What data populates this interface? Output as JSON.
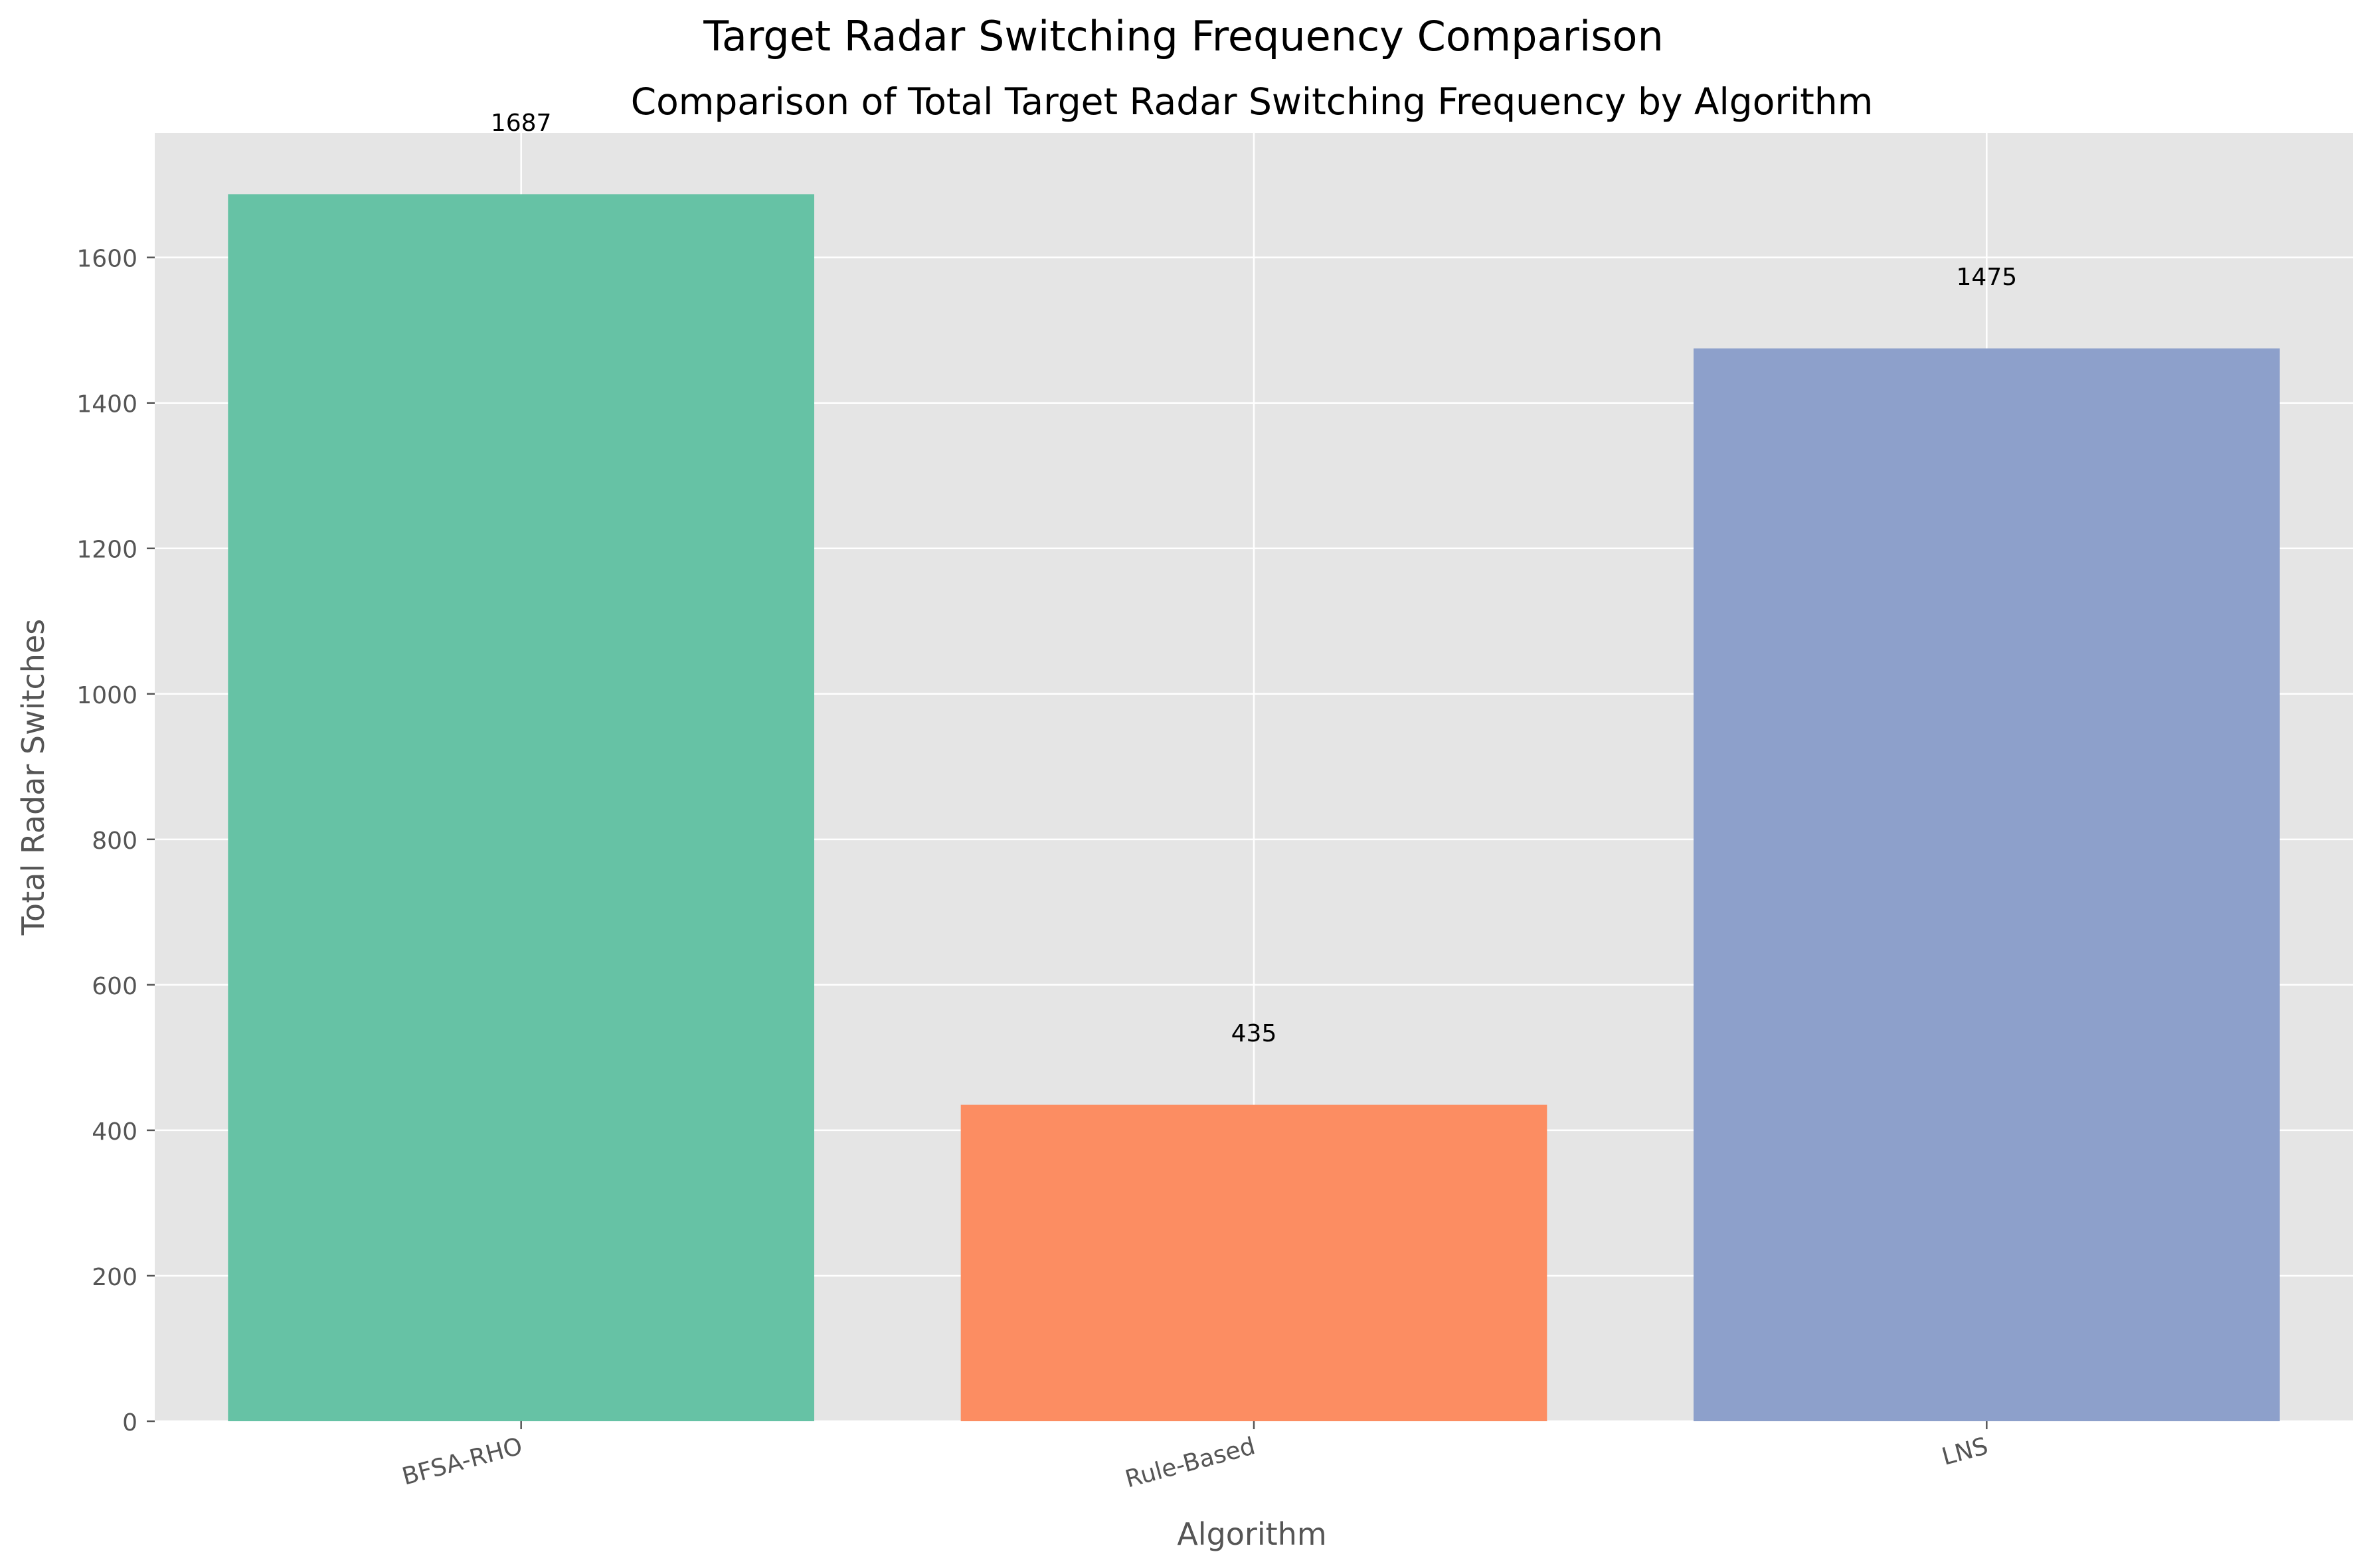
{
  "chart_data": {
    "type": "bar",
    "suptitle": "Target Radar Switching Frequency Comparison",
    "title": "Comparison of Total Target Radar Switching Frequency by Algorithm",
    "xlabel": "Algorithm",
    "ylabel": "Total Radar Switches",
    "categories": [
      "BFSA-RHO",
      "Rule-Based",
      "LNS"
    ],
    "values": [
      1687,
      435,
      1475
    ],
    "bar_colors": [
      "#66c2a5",
      "#fc8d62",
      "#8da0cb"
    ],
    "ylim": [
      0,
      1771.35
    ],
    "yticks": [
      0,
      200,
      400,
      600,
      800,
      1000,
      1200,
      1400,
      1600
    ],
    "grid": true,
    "background": "#e5e5e5",
    "data_labels": true
  }
}
